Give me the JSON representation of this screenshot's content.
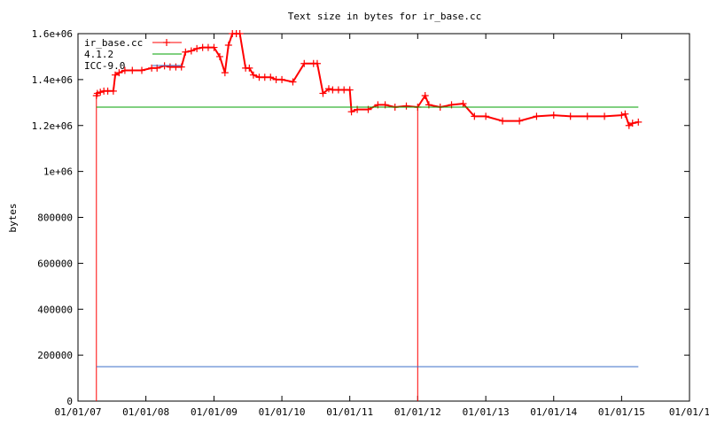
{
  "chart_data": {
    "type": "line",
    "title": "Text size in bytes for ir_base.cc",
    "xlabel": "",
    "ylabel": "bytes",
    "xlim": [
      "2007-01-01",
      "2016-01-01"
    ],
    "ylim": [
      0,
      1600000
    ],
    "grid": false,
    "legend_position": "top-left",
    "x_ticks": [
      "01/01/07",
      "01/01/08",
      "01/01/09",
      "01/01/10",
      "01/01/11",
      "01/01/12",
      "01/01/13",
      "01/01/14",
      "01/01/15",
      "01/01/1"
    ],
    "x_tick_dates": [
      "2007-01-01",
      "2008-01-01",
      "2009-01-01",
      "2010-01-01",
      "2011-01-01",
      "2012-01-01",
      "2013-01-01",
      "2014-01-01",
      "2015-01-01",
      "2016-01-01"
    ],
    "y_ticks": [
      {
        "value": 0,
        "label": "0"
      },
      {
        "value": 200000,
        "label": "200000"
      },
      {
        "value": 400000,
        "label": "400000"
      },
      {
        "value": 600000,
        "label": "600000"
      },
      {
        "value": 800000,
        "label": "800000"
      },
      {
        "value": 1000000,
        "label": "1e+06"
      },
      {
        "value": 1200000,
        "label": "1.2e+06"
      },
      {
        "value": 1400000,
        "label": "1.4e+06"
      },
      {
        "value": 1600000,
        "label": "1.6e+06"
      }
    ],
    "series": [
      {
        "name": "ir_base.cc",
        "color": "#ff0000",
        "style": "linespoints",
        "x": [
          "2007-04-10",
          "2007-04-15",
          "2007-05-01",
          "2007-05-20",
          "2007-06-10",
          "2007-07-10",
          "2007-07-20",
          "2007-08-10",
          "2007-09-10",
          "2007-10-20",
          "2007-12-10",
          "2008-02-01",
          "2008-03-01",
          "2008-04-10",
          "2008-05-10",
          "2008-06-10",
          "2008-07-10",
          "2008-08-01",
          "2008-09-01",
          "2008-10-01",
          "2008-11-01",
          "2008-12-01",
          "2009-01-01",
          "2009-02-01",
          "2009-03-01",
          "2009-03-20",
          "2009-04-10",
          "2009-05-01",
          "2009-05-20",
          "2009-06-20",
          "2009-07-10",
          "2009-08-01",
          "2009-09-01",
          "2009-10-01",
          "2009-11-01",
          "2009-12-01",
          "2010-01-01",
          "2010-03-01",
          "2010-05-01",
          "2010-06-20",
          "2010-07-10",
          "2010-08-10",
          "2010-09-10",
          "2010-10-01",
          "2010-11-01",
          "2010-12-01",
          "2011-01-01",
          "2011-01-10",
          "2011-02-10",
          "2011-04-10",
          "2011-06-01",
          "2011-07-10",
          "2011-09-01",
          "2011-11-01",
          "2012-01-01",
          "2012-02-10",
          "2012-03-01",
          "2012-05-01",
          "2012-07-01",
          "2012-09-01",
          "2012-11-01",
          "2013-01-01",
          "2013-04-01",
          "2013-07-01",
          "2013-10-01",
          "2014-01-01",
          "2014-04-01",
          "2014-07-01",
          "2014-10-01",
          "2015-01-01",
          "2015-01-20",
          "2015-02-10",
          "2015-03-01",
          "2015-04-01"
        ],
        "values": [
          1330000,
          1340000,
          1345000,
          1350000,
          1350000,
          1350000,
          1420000,
          1430000,
          1440000,
          1440000,
          1440000,
          1450000,
          1450000,
          1460000,
          1455000,
          1455000,
          1455000,
          1520000,
          1525000,
          1535000,
          1540000,
          1540000,
          1540000,
          1500000,
          1430000,
          1550000,
          1600000,
          1600000,
          1600000,
          1450000,
          1450000,
          1420000,
          1410000,
          1410000,
          1410000,
          1400000,
          1400000,
          1390000,
          1470000,
          1470000,
          1470000,
          1340000,
          1360000,
          1355000,
          1355000,
          1355000,
          1355000,
          1260000,
          1270000,
          1270000,
          1290000,
          1290000,
          1280000,
          1285000,
          1280000,
          1330000,
          1290000,
          1280000,
          1290000,
          1295000,
          1240000,
          1240000,
          1220000,
          1220000,
          1240000,
          1245000,
          1240000,
          1240000,
          1240000,
          1245000,
          1250000,
          1200000,
          1210000,
          1215000
        ],
        "spikes": [
          {
            "date": "2007-04-10",
            "from": 1330000,
            "to": 0
          },
          {
            "date": "2012-01-01",
            "from": 1280000,
            "to": 0
          }
        ]
      },
      {
        "name": "4.1.2",
        "color": "#00a000",
        "style": "lines",
        "x": [
          "2007-04-10",
          "2015-04-01"
        ],
        "values": [
          1280000,
          1280000
        ]
      },
      {
        "name": "ICC-9.0",
        "color": "#3a6fc9",
        "style": "lines",
        "x": [
          "2007-04-10",
          "2015-04-01"
        ],
        "values": [
          150000,
          150000
        ]
      }
    ]
  }
}
